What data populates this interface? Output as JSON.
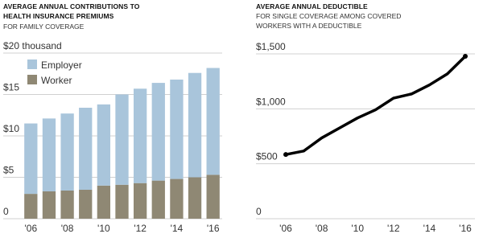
{
  "chart_data": [
    {
      "type": "bar",
      "stacked": true,
      "title": "AVERAGE ANNUAL CONTRIBUTIONS TO HEALTH INSURANCE PREMIUMS",
      "subtitle": "FOR FAMILY COVERAGE",
      "categories": [
        "'06",
        null,
        "'08",
        null,
        "'10",
        null,
        "'12",
        null,
        "'14",
        null,
        "'16"
      ],
      "series": [
        {
          "name": "Employer",
          "color": "#a9c5db",
          "values": [
            8.5,
            8.8,
            9.3,
            9.9,
            9.8,
            10.9,
            11.4,
            11.8,
            12.0,
            12.6,
            12.9
          ]
        },
        {
          "name": "Worker",
          "color": "#8f8874",
          "values": [
            3.0,
            3.3,
            3.4,
            3.5,
            4.0,
            4.1,
            4.3,
            4.6,
            4.8,
            5.0,
            5.3
          ]
        }
      ],
      "ylim": [
        0,
        20
      ],
      "yticks": [
        0,
        {
          "value": 5,
          "label": "$5"
        },
        {
          "value": 10,
          "label": "$10"
        },
        {
          "value": 15,
          "label": "$15"
        },
        {
          "value": 20,
          "label": "$20 thousand"
        }
      ],
      "grid": true,
      "legend": "top-left"
    },
    {
      "type": "line",
      "title": "AVERAGE ANNUAL DEDUCTIBLE",
      "subtitle": "FOR SINGLE COVERAGE AMONG COVERED WORKERS WITH A DEDUCTIBLE",
      "x": [
        2006,
        2007,
        2008,
        2009,
        2010,
        2011,
        2012,
        2013,
        2014,
        2015,
        2016
      ],
      "series": [
        {
          "name": null,
          "color": "#000000",
          "values": [
            584,
            616,
            735,
            826,
            917,
            991,
            1097,
            1135,
            1217,
            1318,
            1478
          ]
        }
      ],
      "xlim": [
        2006,
        2016
      ],
      "xticks": [
        {
          "value": 2006,
          "label": "'06"
        },
        {
          "value": 2008,
          "label": "'08"
        },
        {
          "value": 2010,
          "label": "'10"
        },
        {
          "value": 2012,
          "label": "'12"
        },
        {
          "value": 2014,
          "label": "'14"
        },
        {
          "value": 2016,
          "label": "'16"
        }
      ],
      "ylim": [
        0,
        1500
      ],
      "yticks": [
        0,
        {
          "value": 500,
          "label": "$500"
        },
        {
          "value": 1000,
          "label": "$1,000"
        },
        {
          "value": 1500,
          "label": "$1,500"
        }
      ],
      "grid": true
    }
  ]
}
